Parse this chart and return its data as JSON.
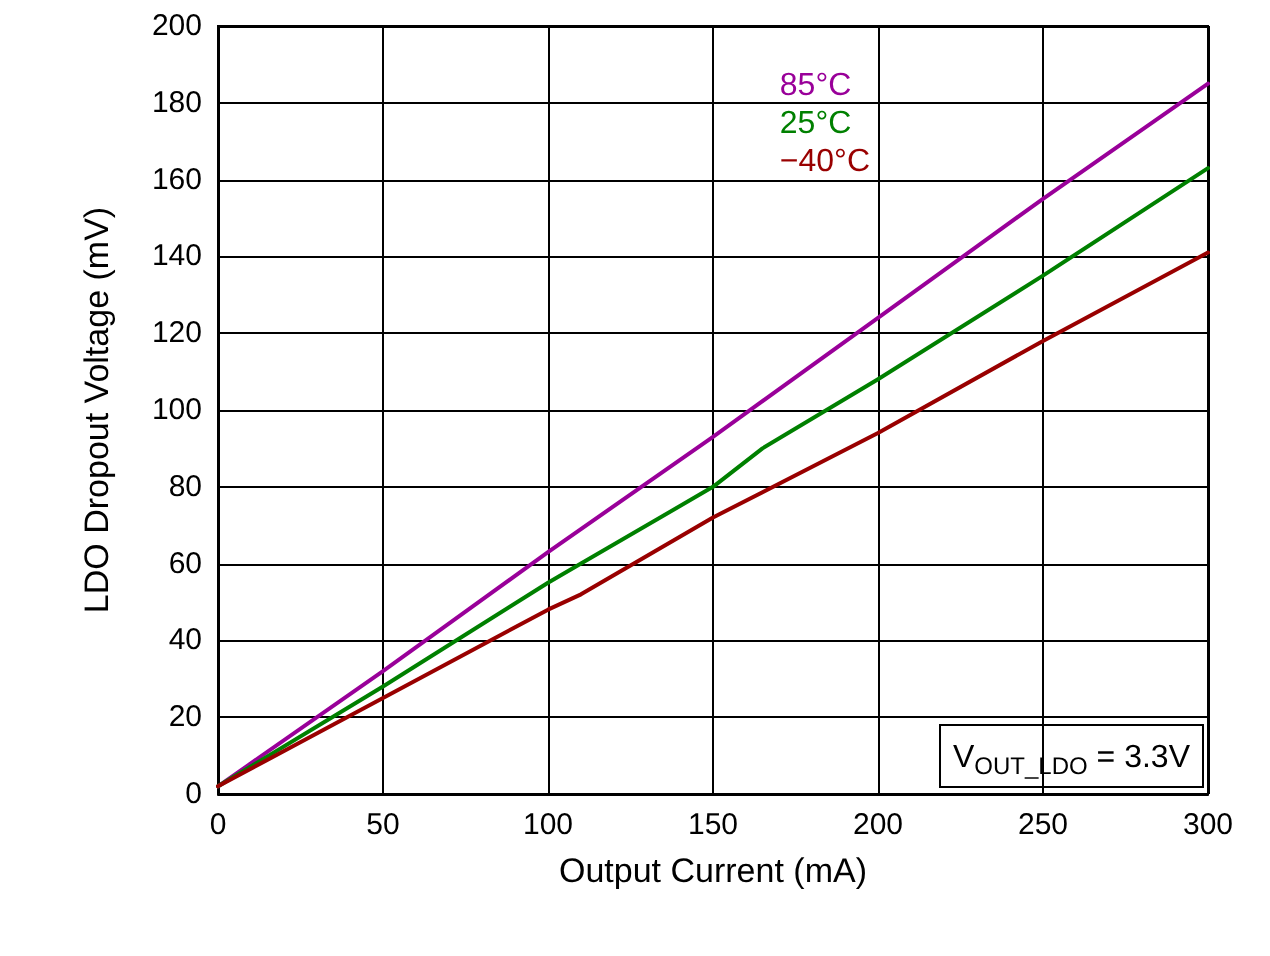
{
  "chart_data": {
    "type": "line",
    "xlabel": "Output Current (mA)",
    "ylabel": "LDO Dropout Voltage (mV)",
    "xlim": [
      0,
      300
    ],
    "xticks": [
      0,
      50,
      100,
      150,
      200,
      250,
      300
    ],
    "ylim": [
      0,
      200
    ],
    "yticks": [
      0,
      20,
      40,
      60,
      80,
      100,
      120,
      140,
      160,
      180,
      200
    ],
    "grid": true,
    "legend": "top right",
    "marker": "none",
    "line_style": "solid",
    "annotations": [
      "V$_{OUT_LDO}$ = 3.3V"
    ],
    "series": [
      {
        "name": "85°C",
        "color": "#990099",
        "x": [
          0,
          50,
          100,
          150,
          200,
          250,
          300
        ],
        "values": [
          2,
          32,
          63,
          93,
          124,
          155,
          185
        ]
      },
      {
        "name": "25°C",
        "color": "#008000",
        "x": [
          0,
          50,
          100,
          110,
          150,
          165,
          200,
          250,
          300
        ],
        "values": [
          2,
          28,
          55,
          60,
          80,
          90,
          108,
          135,
          163
        ]
      },
      {
        "name": "−40°C",
        "color": "#990000",
        "x": [
          0,
          50,
          100,
          110,
          150,
          200,
          250,
          300
        ],
        "values": [
          2,
          25,
          48,
          52,
          72,
          94,
          118,
          141
        ]
      }
    ]
  }
}
